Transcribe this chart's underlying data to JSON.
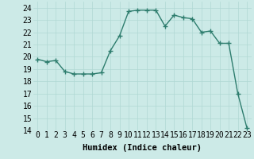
{
  "x": [
    0,
    1,
    2,
    3,
    4,
    5,
    6,
    7,
    8,
    9,
    10,
    11,
    12,
    13,
    14,
    15,
    16,
    17,
    18,
    19,
    20,
    21,
    22,
    23
  ],
  "y": [
    19.8,
    19.6,
    19.7,
    18.8,
    18.6,
    18.6,
    18.6,
    18.7,
    20.5,
    21.7,
    23.7,
    23.8,
    23.8,
    23.8,
    22.5,
    23.4,
    23.2,
    23.1,
    22.0,
    22.1,
    21.1,
    21.1,
    17.0,
    14.2
  ],
  "line_color": "#2e7d6e",
  "marker": "+",
  "markersize": 4,
  "linewidth": 1.0,
  "markeredgewidth": 1.0,
  "xlabel": "Humidex (Indice chaleur)",
  "xlim": [
    -0.5,
    23.5
  ],
  "ylim": [
    14,
    24.5
  ],
  "yticks": [
    14,
    15,
    16,
    17,
    18,
    19,
    20,
    21,
    22,
    23,
    24
  ],
  "xtick_labels": [
    "0",
    "1",
    "2",
    "3",
    "4",
    "5",
    "6",
    "7",
    "8",
    "9",
    "10",
    "11",
    "12",
    "13",
    "14",
    "15",
    "16",
    "17",
    "18",
    "19",
    "20",
    "21",
    "22",
    "23"
  ],
  "bg_color": "#cceae7",
  "grid_color": "#b0d8d4",
  "label_fontsize": 7.5,
  "tick_fontsize": 7
}
